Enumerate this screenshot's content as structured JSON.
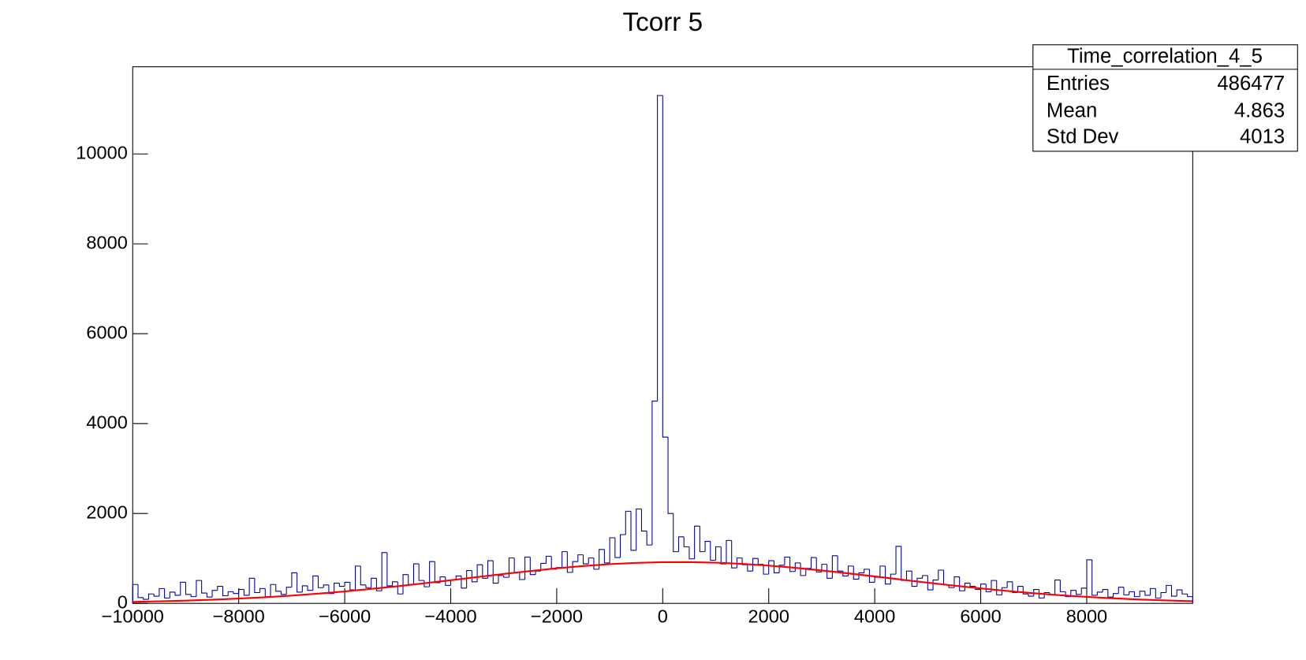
{
  "chart_data": {
    "type": "histogram",
    "title": "Tcorr 5",
    "color": "#0000a0",
    "xlim": [
      -10000,
      10000
    ],
    "ylim": [
      0,
      11940
    ],
    "xticks": [
      {
        "value": -10000,
        "label": "−10000"
      },
      {
        "value": -8000,
        "label": "−8000"
      },
      {
        "value": -6000,
        "label": "−6000"
      },
      {
        "value": -4000,
        "label": "−4000"
      },
      {
        "value": -2000,
        "label": "−2000"
      },
      0,
      2000,
      4000,
      6000,
      8000
    ],
    "yticks": [
      0,
      2000,
      4000,
      6000,
      8000,
      10000
    ],
    "bins": [
      -10000,
      -9900,
      -9800,
      -9700,
      -9600,
      -9500,
      -9400,
      -9300,
      -9200,
      -9100,
      -9000,
      -8900,
      -8800,
      -8700,
      -8600,
      -8500,
      -8400,
      -8300,
      -8200,
      -8100,
      -8000,
      -7900,
      -7800,
      -7700,
      -7600,
      -7500,
      -7400,
      -7300,
      -7200,
      -7100,
      -7000,
      -6900,
      -6800,
      -6700,
      -6600,
      -6500,
      -6400,
      -6300,
      -6200,
      -6100,
      -6000,
      -5900,
      -5800,
      -5700,
      -5600,
      -5500,
      -5400,
      -5300,
      -5200,
      -5100,
      -5000,
      -4900,
      -4800,
      -4700,
      -4600,
      -4500,
      -4400,
      -4300,
      -4200,
      -4100,
      -4000,
      -3900,
      -3800,
      -3700,
      -3600,
      -3500,
      -3400,
      -3300,
      -3200,
      -3100,
      -3000,
      -2900,
      -2800,
      -2700,
      -2600,
      -2500,
      -2400,
      -2300,
      -2200,
      -2100,
      -2000,
      -1900,
      -1800,
      -1700,
      -1600,
      -1500,
      -1400,
      -1300,
      -1200,
      -1100,
      -1000,
      -900,
      -800,
      -700,
      -600,
      -500,
      -400,
      -300,
      -200,
      -100,
      0,
      100,
      200,
      300,
      400,
      500,
      600,
      700,
      800,
      900,
      1000,
      1100,
      1200,
      1300,
      1400,
      1500,
      1600,
      1700,
      1800,
      1900,
      2000,
      2100,
      2200,
      2300,
      2400,
      2500,
      2600,
      2700,
      2800,
      2900,
      3000,
      3100,
      3200,
      3300,
      3400,
      3500,
      3600,
      3700,
      3800,
      3900,
      4000,
      4100,
      4200,
      4300,
      4400,
      4500,
      4600,
      4700,
      4800,
      4900,
      5000,
      5100,
      5200,
      5300,
      5400,
      5500,
      5600,
      5700,
      5800,
      5900,
      6000,
      6100,
      6200,
      6300,
      6400,
      6500,
      6600,
      6700,
      6800,
      6900,
      7000,
      7100,
      7200,
      7300,
      7400,
      7500,
      7600,
      7700,
      7800,
      7900,
      8000,
      8100,
      8200,
      8300,
      8400,
      8500,
      8600,
      8700,
      8800,
      8900,
      9000,
      9100,
      9200,
      9300,
      9400,
      9500,
      9600,
      9700,
      9800,
      9900,
      10000
    ],
    "values": [
      420,
      130,
      90,
      210,
      160,
      330,
      120,
      250,
      180,
      470,
      200,
      150,
      510,
      230,
      140,
      290,
      380,
      170,
      260,
      220,
      310,
      180,
      560,
      240,
      330,
      150,
      420,
      270,
      200,
      360,
      680,
      250,
      390,
      290,
      610,
      350,
      410,
      220,
      450,
      380,
      470,
      300,
      830,
      410,
      350,
      560,
      280,
      1130,
      390,
      480,
      210,
      640,
      420,
      880,
      510,
      370,
      930,
      460,
      590,
      400,
      520,
      610,
      340,
      730,
      480,
      860,
      560,
      950,
      450,
      620,
      580,
      1010,
      690,
      530,
      1030,
      640,
      720,
      890,
      1050,
      760,
      800,
      1150,
      690,
      930,
      1080,
      880,
      1010,
      760,
      1200,
      900,
      1460,
      1020,
      1530,
      2050,
      1180,
      2100,
      1610,
      1300,
      4500,
      11300,
      3700,
      2000,
      1150,
      1480,
      1260,
      990,
      1720,
      1150,
      1380,
      960,
      1260,
      880,
      1400,
      790,
      1010,
      860,
      720,
      1000,
      870,
      650,
      950,
      680,
      850,
      1030,
      710,
      900,
      620,
      780,
      1020,
      700,
      870,
      560,
      1060,
      720,
      610,
      830,
      540,
      680,
      760,
      470,
      580,
      830,
      430,
      650,
      1270,
      510,
      720,
      380,
      560,
      620,
      300,
      520,
      740,
      410,
      350,
      590,
      280,
      450,
      380,
      310,
      430,
      260,
      510,
      190,
      350,
      480,
      240,
      380,
      210,
      160,
      310,
      120,
      240,
      190,
      520,
      260,
      150,
      290,
      200,
      340,
      970,
      180,
      250,
      310,
      140,
      220,
      360,
      190,
      260,
      150,
      270,
      180,
      330,
      120,
      240,
      400,
      160,
      300,
      210,
      150
    ],
    "fit": {
      "color": "#ff0000",
      "x": [
        -10000,
        -9500,
        -9000,
        -8500,
        -8000,
        -7500,
        -7000,
        -6500,
        -6000,
        -5500,
        -5000,
        -4500,
        -4000,
        -3500,
        -3000,
        -2500,
        -2000,
        -1500,
        -1000,
        -500,
        0,
        500,
        1000,
        1500,
        2000,
        2500,
        3000,
        3500,
        4000,
        4500,
        5000,
        5500,
        6000,
        6500,
        7000,
        7500,
        8000,
        8500,
        9000,
        9500,
        10000
      ],
      "values": [
        33,
        46,
        62,
        82,
        107,
        137,
        174,
        217,
        266,
        322,
        382,
        448,
        516,
        586,
        655,
        720,
        780,
        831,
        873,
        902,
        917,
        919,
        906,
        880,
        841,
        791,
        733,
        668,
        600,
        530,
        461,
        395,
        333,
        277,
        226,
        182,
        144,
        113,
        86,
        65,
        49
      ]
    },
    "stats": {
      "title": "Time_correlation_4_5",
      "rows": [
        [
          "Entries",
          486477
        ],
        [
          "Mean",
          4.863
        ],
        [
          "Std Dev",
          4013
        ]
      ]
    }
  }
}
